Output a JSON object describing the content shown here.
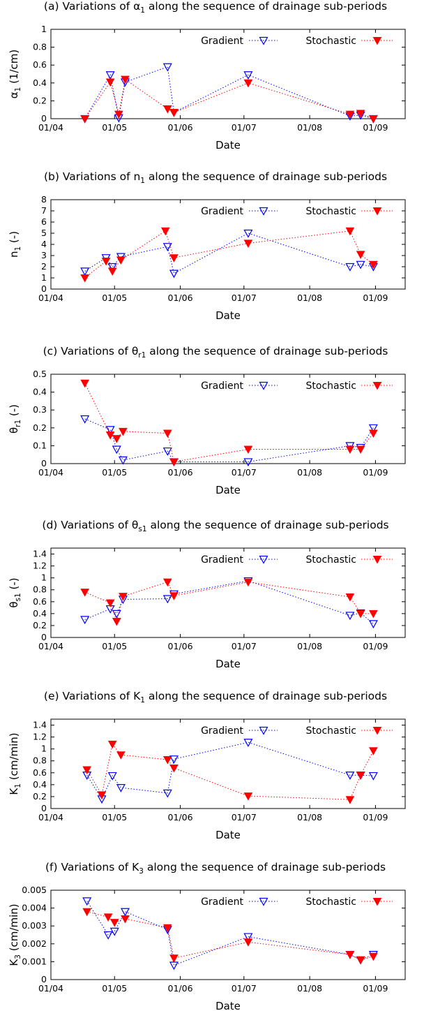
{
  "figure": {
    "xlabel": "Date",
    "x_ticks": [
      "01/04",
      "01/05",
      "01/06",
      "01/07",
      "01/08",
      "01/09"
    ],
    "legend": [
      "Gradient",
      "Stochastic"
    ],
    "colors": {
      "gradient": "#0000ff",
      "stochastic": "#ff0000",
      "axis": "#000000"
    }
  },
  "chart_data": [
    {
      "type": "scatter",
      "title": {
        "prefix": "(a) Variations of ",
        "symbol": "α",
        "sub": "1",
        "suffix": " along the sequence of drainage sub-periods"
      },
      "ylabel": {
        "symbol": "α",
        "sub": "1",
        "suffix": " (1/cm)"
      },
      "xlabel": "Date",
      "x_axis": "date",
      "xlim": [
        "2001-04-01",
        "2001-09-15"
      ],
      "ylim": [
        0,
        1
      ],
      "yticks": [
        "0",
        "0.2",
        "0.4",
        "0.6",
        "0.8",
        "1"
      ],
      "yvals": [
        0,
        0.2,
        0.4,
        0.6,
        0.8,
        1
      ],
      "legend_position": "top-right",
      "series": [
        {
          "name": "Gradient",
          "x": [
            "2001-04-17",
            "2001-04-29",
            "2001-05-03",
            "2001-05-06",
            "2001-05-26",
            "2001-05-29",
            "2001-07-03",
            "2001-08-20",
            "2001-08-25",
            "2001-08-31"
          ],
          "y": [
            0.0,
            0.49,
            0.01,
            0.41,
            0.58,
            0.07,
            0.49,
            0.03,
            0.04,
            0.0
          ]
        },
        {
          "name": "Stochastic",
          "x": [
            "2001-04-17",
            "2001-04-29",
            "2001-05-03",
            "2001-05-06",
            "2001-05-26",
            "2001-05-29",
            "2001-07-03",
            "2001-08-20",
            "2001-08-25",
            "2001-08-31"
          ],
          "y": [
            0.0,
            0.41,
            0.05,
            0.44,
            0.11,
            0.07,
            0.4,
            0.05,
            0.06,
            0.0
          ]
        }
      ]
    },
    {
      "type": "scatter",
      "title": {
        "prefix": "(b) Variations of ",
        "symbol": "n",
        "sub": "1",
        "suffix": " along the sequence of drainage sub-periods"
      },
      "ylabel": {
        "symbol": "n",
        "sub": "1",
        "suffix": " (-)"
      },
      "xlabel": "Date",
      "x_axis": "date",
      "xlim": [
        "2001-04-01",
        "2001-09-15"
      ],
      "ylim": [
        0,
        8
      ],
      "yticks": [
        "0",
        "1",
        "2",
        "3",
        "4",
        "5",
        "6",
        "7",
        "8"
      ],
      "yvals": [
        0,
        1,
        2,
        3,
        4,
        5,
        6,
        7,
        8
      ],
      "legend_position": "top-right",
      "series": [
        {
          "name": "Gradient",
          "x": [
            "2001-04-17",
            "2001-04-27",
            "2001-04-30",
            "2001-05-04",
            "2001-05-26",
            "2001-05-29",
            "2001-07-03",
            "2001-08-20",
            "2001-08-25",
            "2001-08-31"
          ],
          "y": [
            1.6,
            2.8,
            2.0,
            2.9,
            3.8,
            1.4,
            5.0,
            2.0,
            2.2,
            2.0
          ]
        },
        {
          "name": "Stochastic",
          "x": [
            "2001-04-17",
            "2001-04-27",
            "2001-04-30",
            "2001-05-04",
            "2001-05-25",
            "2001-05-29",
            "2001-07-03",
            "2001-08-20",
            "2001-08-25",
            "2001-08-31"
          ],
          "y": [
            1.0,
            2.5,
            1.6,
            2.6,
            5.2,
            2.8,
            4.1,
            5.2,
            3.1,
            2.2
          ]
        }
      ]
    },
    {
      "type": "scatter",
      "title": {
        "prefix": "(c) Variations of ",
        "symbol": "θ",
        "sub": "r1",
        "suffix": " along the sequence of drainage sub-periods"
      },
      "ylabel": {
        "symbol": "θ",
        "sub": "r1",
        "suffix": " (-)"
      },
      "xlabel": "Date",
      "x_axis": "date",
      "xlim": [
        "2001-04-01",
        "2001-09-15"
      ],
      "ylim": [
        0,
        0.5
      ],
      "yticks": [
        "0",
        "0.1",
        "0.2",
        "0.3",
        "0.4",
        "0.5"
      ],
      "yvals": [
        0,
        0.1,
        0.2,
        0.3,
        0.4,
        0.5
      ],
      "legend_position": "top-right",
      "series": [
        {
          "name": "Gradient",
          "x": [
            "2001-04-17",
            "2001-04-29",
            "2001-05-02",
            "2001-05-05",
            "2001-05-26",
            "2001-05-29",
            "2001-07-03",
            "2001-08-20",
            "2001-08-25",
            "2001-08-31"
          ],
          "y": [
            0.25,
            0.19,
            0.08,
            0.02,
            0.07,
            0.01,
            0.01,
            0.1,
            0.09,
            0.2
          ]
        },
        {
          "name": "Stochastic",
          "x": [
            "2001-04-17",
            "2001-04-29",
            "2001-05-02",
            "2001-05-05",
            "2001-05-26",
            "2001-05-29",
            "2001-07-03",
            "2001-08-20",
            "2001-08-25",
            "2001-08-31"
          ],
          "y": [
            0.45,
            0.16,
            0.14,
            0.18,
            0.17,
            0.01,
            0.08,
            0.08,
            0.08,
            0.17
          ]
        }
      ]
    },
    {
      "type": "scatter",
      "title": {
        "prefix": "(d) Variations of ",
        "symbol": "θ",
        "sub": "s1",
        "suffix": " along the sequence of drainage sub-periods"
      },
      "ylabel": {
        "symbol": "θ",
        "sub": "s1",
        "suffix": " (-)"
      },
      "xlabel": "Date",
      "x_axis": "date",
      "xlim": [
        "2001-04-01",
        "2001-09-15"
      ],
      "ylim": [
        0,
        1.5
      ],
      "yticks": [
        "0",
        "0.2",
        "0.4",
        "0.6",
        "0.8",
        "1",
        "1.2",
        "1.4"
      ],
      "yvals": [
        0,
        0.2,
        0.4,
        0.6,
        0.8,
        1,
        1.2,
        1.4
      ],
      "legend_position": "top-right",
      "series": [
        {
          "name": "Gradient",
          "x": [
            "2001-04-17",
            "2001-04-29",
            "2001-05-02",
            "2001-05-05",
            "2001-05-26",
            "2001-05-29",
            "2001-07-03",
            "2001-08-20",
            "2001-08-25",
            "2001-08-31"
          ],
          "y": [
            0.3,
            0.48,
            0.4,
            0.64,
            0.65,
            0.73,
            0.95,
            0.37,
            0.41,
            0.23
          ]
        },
        {
          "name": "Stochastic",
          "x": [
            "2001-04-17",
            "2001-04-29",
            "2001-05-02",
            "2001-05-05",
            "2001-05-26",
            "2001-05-29",
            "2001-07-03",
            "2001-08-20",
            "2001-08-25",
            "2001-08-31"
          ],
          "y": [
            0.76,
            0.58,
            0.27,
            0.69,
            0.93,
            0.7,
            0.93,
            0.68,
            0.4,
            0.4
          ]
        }
      ]
    },
    {
      "type": "scatter",
      "title": {
        "prefix": "(e) Variations of ",
        "symbol": "K",
        "sub": "1",
        "suffix": " along the sequence of drainage sub-periods"
      },
      "ylabel": {
        "symbol": "K",
        "sub": "1",
        "suffix": " (cm/min)"
      },
      "xlabel": "Date",
      "x_axis": "date",
      "xlim": [
        "2001-04-01",
        "2001-09-15"
      ],
      "ylim": [
        0,
        1.5
      ],
      "yticks": [
        "0",
        "0.2",
        "0.4",
        "0.6",
        "0.8",
        "1",
        "1.2",
        "1.4"
      ],
      "yvals": [
        0,
        0.2,
        0.4,
        0.6,
        0.8,
        1,
        1.2,
        1.4
      ],
      "legend_position": "top-right",
      "series": [
        {
          "name": "Gradient",
          "x": [
            "2001-04-18",
            "2001-04-25",
            "2001-04-30",
            "2001-05-04",
            "2001-05-26",
            "2001-05-29",
            "2001-07-03",
            "2001-08-20",
            "2001-08-25",
            "2001-08-31"
          ],
          "y": [
            0.56,
            0.16,
            0.55,
            0.35,
            0.26,
            0.83,
            1.11,
            0.56,
            0.56,
            0.55
          ]
        },
        {
          "name": "Stochastic",
          "x": [
            "2001-04-18",
            "2001-04-25",
            "2001-04-30",
            "2001-05-04",
            "2001-05-26",
            "2001-05-29",
            "2001-07-03",
            "2001-08-20",
            "2001-08-25",
            "2001-08-31"
          ],
          "y": [
            0.65,
            0.23,
            1.08,
            0.9,
            0.82,
            0.68,
            0.21,
            0.15,
            0.56,
            0.97
          ]
        }
      ]
    },
    {
      "type": "scatter",
      "title": {
        "prefix": "(f) Variations of ",
        "symbol": "K",
        "sub": "3",
        "suffix": " along the sequence of drainage sub-periods"
      },
      "ylabel": {
        "symbol": "K",
        "sub": "3",
        "suffix": " (cm/min)"
      },
      "xlabel": "Date",
      "x_axis": "date",
      "xlim": [
        "2001-04-01",
        "2001-09-15"
      ],
      "ylim": [
        0,
        0.005
      ],
      "yticks": [
        "0",
        "0.001",
        "0.002",
        "0.003",
        "0.004",
        "0.005"
      ],
      "yvals": [
        0,
        0.001,
        0.002,
        0.003,
        0.004,
        0.005
      ],
      "legend_position": "top-right",
      "series": [
        {
          "name": "Gradient",
          "x": [
            "2001-04-18",
            "2001-04-28",
            "2001-05-01",
            "2001-05-06",
            "2001-05-26",
            "2001-05-29",
            "2001-07-03",
            "2001-08-20",
            "2001-08-25",
            "2001-08-31"
          ],
          "y": [
            0.0044,
            0.0025,
            0.0027,
            0.0038,
            0.0028,
            0.0008,
            0.0024,
            0.0014,
            0.0011,
            0.0014
          ]
        },
        {
          "name": "Stochastic",
          "x": [
            "2001-04-18",
            "2001-04-28",
            "2001-05-01",
            "2001-05-06",
            "2001-05-26",
            "2001-05-29",
            "2001-07-03",
            "2001-08-20",
            "2001-08-25",
            "2001-08-31"
          ],
          "y": [
            0.0038,
            0.0035,
            0.0032,
            0.0034,
            0.0029,
            0.0012,
            0.0021,
            0.0014,
            0.0011,
            0.0013
          ]
        }
      ]
    }
  ]
}
